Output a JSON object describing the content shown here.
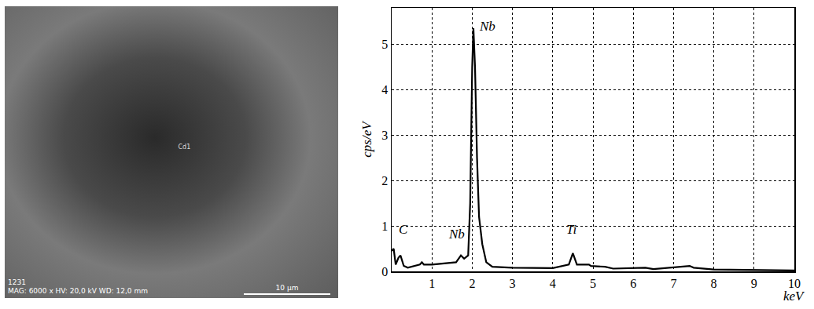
{
  "micrograph": {
    "id": "1231",
    "info": "MAG: 6000 x  HV: 20,0 kV  WD: 12,0 mm",
    "scale_bar": "10 µm",
    "spot_label": "Cd1"
  },
  "chart_data": {
    "type": "line",
    "color": "#000000",
    "x_label": "keV",
    "y_label": "cps/eV",
    "x": [
      0.0,
      0.05,
      0.1,
      0.17,
      0.22,
      0.3,
      0.4,
      0.5,
      0.7,
      0.75,
      0.8,
      1.0,
      1.2,
      1.4,
      1.6,
      1.72,
      1.8,
      1.9,
      1.95,
      2.0,
      2.03,
      2.07,
      2.12,
      2.17,
      2.25,
      2.35,
      2.5,
      3.0,
      4.0,
      4.4,
      4.5,
      4.6,
      4.9,
      4.95,
      5.3,
      5.5,
      6.3,
      6.5,
      7.4,
      7.5,
      8.0,
      10.0
    ],
    "values": [
      0.45,
      0.5,
      0.15,
      0.3,
      0.35,
      0.12,
      0.08,
      0.1,
      0.15,
      0.2,
      0.15,
      0.15,
      0.17,
      0.18,
      0.2,
      0.35,
      0.28,
      0.35,
      1.5,
      4.5,
      5.35,
      4.5,
      2.5,
      1.2,
      0.6,
      0.2,
      0.1,
      0.08,
      0.07,
      0.15,
      0.4,
      0.15,
      0.15,
      0.12,
      0.1,
      0.06,
      0.08,
      0.05,
      0.12,
      0.08,
      0.04,
      0.02
    ],
    "xlim": [
      0,
      10
    ],
    "xticks": [
      1,
      2,
      3,
      4,
      5,
      6,
      7,
      8,
      9,
      10
    ],
    "ylim": [
      0,
      5.8
    ],
    "yticks": [
      0,
      1,
      2,
      3,
      4,
      5
    ],
    "grid": true,
    "line_style": "solid",
    "annotations": [
      {
        "text": "C",
        "x": 0.3,
        "y": 0.72
      },
      {
        "text": "Nb",
        "x": 1.62,
        "y": 0.62
      },
      {
        "text": "Nb",
        "x": 2.38,
        "y": 5.2
      },
      {
        "text": "Ti",
        "x": 4.48,
        "y": 0.72
      }
    ]
  }
}
